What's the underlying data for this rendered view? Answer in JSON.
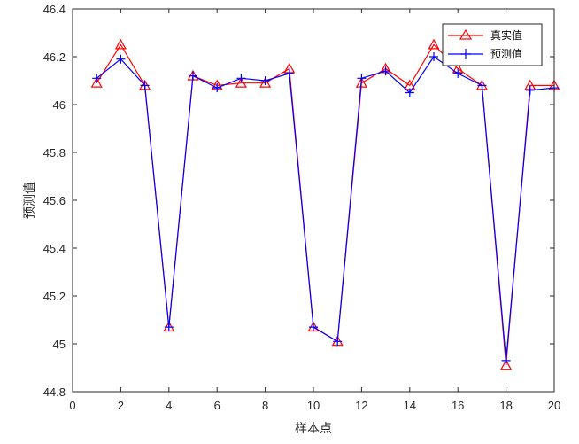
{
  "chart_data": {
    "type": "line",
    "x": [
      1,
      2,
      3,
      4,
      5,
      6,
      7,
      8,
      9,
      10,
      11,
      12,
      13,
      14,
      15,
      16,
      17,
      18,
      19,
      20
    ],
    "series": [
      {
        "name": "真实值",
        "color": "#ff0000",
        "marker": "triangle",
        "values": [
          46.09,
          46.25,
          46.08,
          45.07,
          46.12,
          46.08,
          46.09,
          46.09,
          46.15,
          45.07,
          45.01,
          46.09,
          46.15,
          46.08,
          46.25,
          46.15,
          46.08,
          44.91,
          46.08,
          46.08
        ]
      },
      {
        "name": "预测值",
        "color": "#0000ff",
        "marker": "plus",
        "values": [
          46.11,
          46.19,
          46.08,
          45.07,
          46.12,
          46.07,
          46.11,
          46.1,
          46.13,
          45.07,
          45.01,
          46.11,
          46.14,
          46.05,
          46.2,
          46.13,
          46.08,
          44.93,
          46.06,
          46.07
        ]
      }
    ],
    "xlabel": "样本点",
    "ylabel": "预测值",
    "xlim": [
      0,
      20
    ],
    "ylim": [
      44.8,
      46.4
    ],
    "xticks": [
      0,
      2,
      4,
      6,
      8,
      10,
      12,
      14,
      16,
      18,
      20
    ],
    "yticks": [
      44.8,
      45,
      45.2,
      45.4,
      45.6,
      45.8,
      46,
      46.2,
      46.4
    ],
    "xtick_labels": [
      "0",
      "2",
      "4",
      "6",
      "8",
      "10",
      "12",
      "14",
      "16",
      "18",
      "20"
    ],
    "ytick_labels": [
      "44.8",
      "45",
      "45.2",
      "45.4",
      "45.6",
      "45.8",
      "46",
      "46.2",
      "46.4"
    ],
    "grid": false,
    "legend": "top-right"
  }
}
